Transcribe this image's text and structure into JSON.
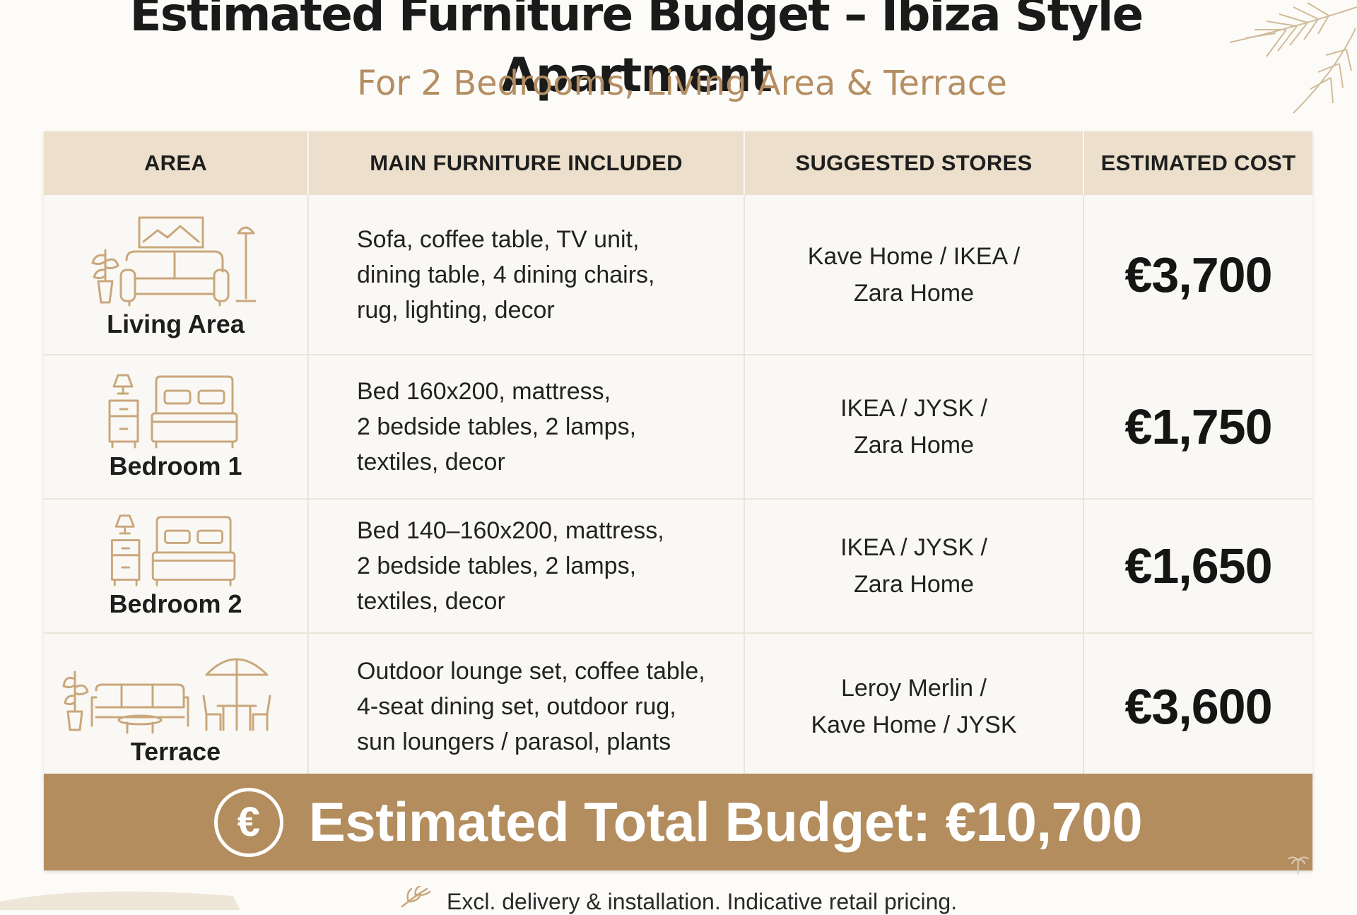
{
  "header": {
    "title": "Estimated Furniture Budget – Ibiza Style Apartment",
    "subtitle": "For 2 Bedrooms, Living Area & Terrace"
  },
  "table": {
    "columns": [
      "AREA",
      "MAIN FURNITURE INCLUDED",
      "SUGGESTED STORES",
      "ESTIMATED COST"
    ],
    "rows": [
      {
        "area": "Living Area",
        "icon": "living-room-icon",
        "furniture": [
          "Sofa, coffee table, TV unit,",
          "dining table, 4 dining chairs,",
          "rug, lighting, decor"
        ],
        "stores": [
          "Kave Home / IKEA /",
          "Zara Home"
        ],
        "cost": "€3,700"
      },
      {
        "area": "Bedroom 1",
        "icon": "bedroom-icon",
        "furniture": [
          "Bed 160x200, mattress,",
          "2 bedside tables, 2 lamps,",
          "textiles, decor"
        ],
        "stores": [
          "IKEA / JYSK /",
          "Zara Home"
        ],
        "cost": "€1,750"
      },
      {
        "area": "Bedroom 2",
        "icon": "bedroom-icon",
        "furniture": [
          "Bed 140–160x200, mattress,",
          "2 bedside tables, 2 lamps,",
          "textiles, decor"
        ],
        "stores": [
          "IKEA / JYSK /",
          "Zara Home"
        ],
        "cost": "€1,650"
      },
      {
        "area": "Terrace",
        "icon": "terrace-icon",
        "furniture": [
          "Outdoor lounge set, coffee table,",
          "4-seat dining set, outdoor rug,",
          "sun loungers / parasol, plants"
        ],
        "stores": [
          "Leroy Merlin /",
          "Kave Home / JYSK"
        ],
        "cost": "€3,600"
      }
    ]
  },
  "total": {
    "symbol": "€",
    "label": "Estimated Total Budget: €10,700"
  },
  "footnote": "Excl. delivery & installation. Indicative retail pricing.",
  "colors": {
    "accent": "#b38d5e",
    "header_bg": "#ecdfcb",
    "icon_line": "#c9a77c",
    "subtitle": "#b48e62",
    "background": "#fdfbf8"
  }
}
